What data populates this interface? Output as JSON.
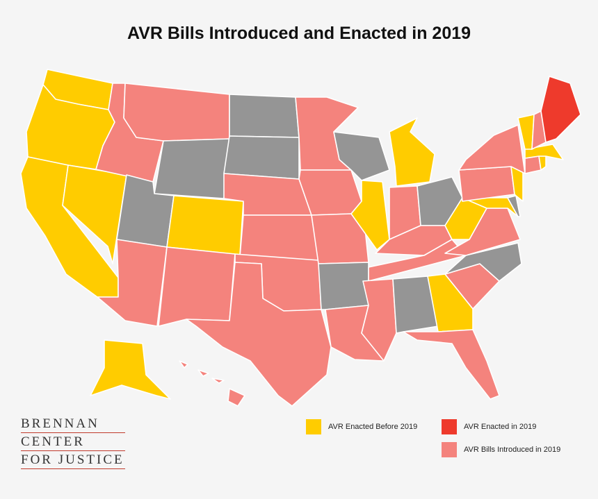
{
  "title": "AVR Bills Introduced and Enacted in 2019",
  "colors": {
    "enacted_before": "#ffcc00",
    "enacted_2019": "#ee3a2c",
    "introduced_2019": "#f4837d",
    "none": "#959595",
    "border": "#ffffff",
    "logo_rule": "#c0392b"
  },
  "legend": [
    {
      "label": "AVR Enacted Before 2019",
      "status": "enacted_before"
    },
    {
      "label": "AVR Enacted in 2019",
      "status": "enacted_2019"
    },
    {
      "label": "AVR Bills Introduced in 2019",
      "status": "introduced_2019"
    }
  ],
  "logo": [
    "BRENNAN",
    "CENTER",
    "FOR JUSTICE"
  ],
  "states": [
    {
      "code": "WA",
      "status": "enacted_before"
    },
    {
      "code": "OR",
      "status": "enacted_before"
    },
    {
      "code": "CA",
      "status": "enacted_before"
    },
    {
      "code": "NV",
      "status": "enacted_before"
    },
    {
      "code": "ID",
      "status": "introduced_2019"
    },
    {
      "code": "MT",
      "status": "introduced_2019"
    },
    {
      "code": "WY",
      "status": "none"
    },
    {
      "code": "UT",
      "status": "none"
    },
    {
      "code": "CO",
      "status": "enacted_before"
    },
    {
      "code": "AZ",
      "status": "introduced_2019"
    },
    {
      "code": "NM",
      "status": "introduced_2019"
    },
    {
      "code": "ND",
      "status": "none"
    },
    {
      "code": "SD",
      "status": "none"
    },
    {
      "code": "NE",
      "status": "introduced_2019"
    },
    {
      "code": "KS",
      "status": "introduced_2019"
    },
    {
      "code": "OK",
      "status": "introduced_2019"
    },
    {
      "code": "TX",
      "status": "introduced_2019"
    },
    {
      "code": "MN",
      "status": "introduced_2019"
    },
    {
      "code": "IA",
      "status": "introduced_2019"
    },
    {
      "code": "MO",
      "status": "introduced_2019"
    },
    {
      "code": "AR",
      "status": "none"
    },
    {
      "code": "LA",
      "status": "introduced_2019"
    },
    {
      "code": "WI",
      "status": "none"
    },
    {
      "code": "IL",
      "status": "enacted_before"
    },
    {
      "code": "MI",
      "status": "enacted_before"
    },
    {
      "code": "IN",
      "status": "introduced_2019"
    },
    {
      "code": "OH",
      "status": "none"
    },
    {
      "code": "KY",
      "status": "introduced_2019"
    },
    {
      "code": "TN",
      "status": "introduced_2019"
    },
    {
      "code": "MS",
      "status": "introduced_2019"
    },
    {
      "code": "AL",
      "status": "none"
    },
    {
      "code": "GA",
      "status": "enacted_before"
    },
    {
      "code": "FL",
      "status": "introduced_2019"
    },
    {
      "code": "SC",
      "status": "introduced_2019"
    },
    {
      "code": "NC",
      "status": "none"
    },
    {
      "code": "VA",
      "status": "introduced_2019"
    },
    {
      "code": "WV",
      "status": "enacted_before"
    },
    {
      "code": "MD",
      "status": "enacted_before"
    },
    {
      "code": "DE",
      "status": "none"
    },
    {
      "code": "PA",
      "status": "introduced_2019"
    },
    {
      "code": "NJ",
      "status": "enacted_before"
    },
    {
      "code": "NY",
      "status": "introduced_2019"
    },
    {
      "code": "CT",
      "status": "introduced_2019"
    },
    {
      "code": "RI",
      "status": "enacted_before"
    },
    {
      "code": "MA",
      "status": "enacted_before"
    },
    {
      "code": "VT",
      "status": "enacted_before"
    },
    {
      "code": "NH",
      "status": "introduced_2019"
    },
    {
      "code": "ME",
      "status": "enacted_2019"
    },
    {
      "code": "AK",
      "status": "enacted_before"
    },
    {
      "code": "HI",
      "status": "introduced_2019"
    }
  ]
}
